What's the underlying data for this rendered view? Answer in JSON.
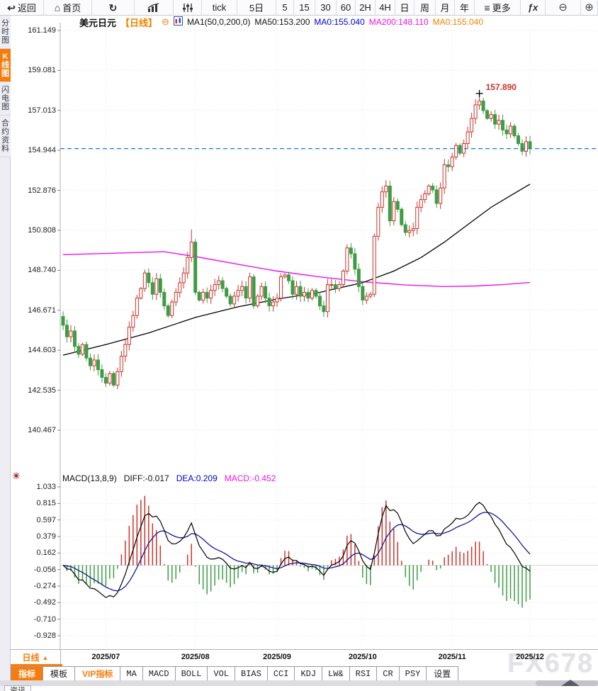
{
  "toolbar": {
    "items": [
      {
        "name": "back-button",
        "icon": "back",
        "label": "返回"
      },
      {
        "name": "home-button",
        "icon": "home",
        "label": "首页"
      },
      {
        "name": "refresh-button",
        "icon": "refresh",
        "label": ""
      },
      {
        "name": "chart-style-button",
        "icon": "bar-chart",
        "label": ""
      },
      {
        "name": "adjust-button",
        "icon": "sliders",
        "label": ""
      },
      {
        "name": "interval-tick-button",
        "label": "tick"
      },
      {
        "name": "interval-5d-button",
        "label": "5日"
      },
      {
        "name": "interval-5m-button",
        "label": "5"
      },
      {
        "name": "interval-15m-button",
        "label": "15"
      },
      {
        "name": "interval-30m-button",
        "label": "30"
      },
      {
        "name": "interval-60m-button",
        "label": "60"
      },
      {
        "name": "interval-2h-button",
        "label": "2H"
      },
      {
        "name": "interval-4h-button",
        "label": "4H"
      },
      {
        "name": "interval-day-button",
        "label": "日"
      },
      {
        "name": "interval-week-button",
        "label": "周"
      },
      {
        "name": "interval-month-button",
        "label": "月"
      },
      {
        "name": "interval-year-button",
        "label": "年"
      },
      {
        "name": "more-button",
        "icon": "menu",
        "label": "更多"
      },
      {
        "name": "fx-button",
        "icon": "fx",
        "label": ""
      },
      {
        "name": "zoom-out-button",
        "icon": "zoom_out",
        "label": ""
      },
      {
        "name": "zoom-in-button",
        "icon": "zoom_in",
        "label": ""
      }
    ]
  },
  "icons": {
    "back": "↩",
    "home": "⌂",
    "refresh": "↻",
    "menu": "≡",
    "fx": "ƒx",
    "zoom_out": "⊖",
    "zoom_in": "⊕",
    "settings_sun": "☀",
    "instrument_collapse": "⊖",
    "dropdown_up": "▲"
  },
  "sidebar": {
    "tabs": [
      {
        "label": "分时图",
        "active": false
      },
      {
        "label": "K线图",
        "active": true
      },
      {
        "label": "闪电图",
        "active": false
      },
      {
        "label": "合约资料",
        "active": false
      }
    ]
  },
  "header": {
    "symbol": "美元日元",
    "period_tag": "【日线】",
    "ma_settings": "MA1(50,0,200,0)",
    "ma50": "MA50:153.200",
    "ma0_blue": "MA0:155.040",
    "ma200": "MA200:148.110",
    "ma0_orange": "MA0:155.040"
  },
  "macd_header": {
    "title": "MACD(13,8,9)",
    "diff": "DIFF:-0.017",
    "dea": "DEA:0.209",
    "macd": "MACD:-0.452"
  },
  "xaxis": {
    "period_button": "日线"
  },
  "bottom": {
    "tabs": [
      {
        "label": "指标",
        "style": "active"
      },
      {
        "label": "模板",
        "style": ""
      },
      {
        "label": "VIP指标",
        "style": "vip"
      },
      {
        "label": "MA",
        "style": "mono"
      },
      {
        "label": "MACD",
        "style": "mono"
      },
      {
        "label": "BOLL",
        "style": "mono"
      },
      {
        "label": "VOL",
        "style": "mono"
      },
      {
        "label": "BIAS",
        "style": "mono"
      },
      {
        "label": "CCI",
        "style": "mono"
      },
      {
        "label": "KDJ",
        "style": "mono"
      },
      {
        "label": "LW&",
        "style": "mono"
      },
      {
        "label": "RSI",
        "style": "mono"
      },
      {
        "label": "CR",
        "style": "mono"
      },
      {
        "label": "PSY",
        "style": "mono"
      },
      {
        "label": "设置",
        "style": ""
      }
    ],
    "news_tab": "资讯"
  },
  "watermark": "FX678",
  "chart_data": {
    "type": "candlestick",
    "title": "美元日元 日线",
    "indicator": "MACD(13,8,9)",
    "legend": [
      "MA50 (black)",
      "MA200 (magenta)",
      "DIFF (black)",
      "DEA (blue)",
      "MACD histogram (red/green)"
    ],
    "y_ticks_main": [
      "161.149",
      "159.081",
      "157.013",
      "154.944",
      "152.876",
      "150.808",
      "148.740",
      "146.671",
      "144.603",
      "142.535",
      "140.467"
    ],
    "y_ticks_macd": [
      "1.033",
      "0.815",
      "0.597",
      "0.379",
      "0.162",
      "-0.056",
      "-0.274",
      "-0.492",
      "-0.710",
      "-0.928"
    ],
    "y_range_main": [
      140.467,
      161.149
    ],
    "y_range_macd": [
      -0.928,
      1.033
    ],
    "month_ticks": [
      {
        "label": "2025/07",
        "index": 11
      },
      {
        "label": "2025/08",
        "index": 34
      },
      {
        "label": "2025/09",
        "index": 55
      },
      {
        "label": "2025/10",
        "index": 77
      },
      {
        "label": "2025/11",
        "index": 100
      },
      {
        "label": "2025/12",
        "index": 120
      }
    ],
    "start_date": "2025-06-16",
    "closes": [
      145.9,
      145.3,
      145.6,
      144.8,
      144.4,
      144.9,
      144.2,
      143.8,
      144.1,
      143.6,
      143.2,
      142.9,
      143.4,
      142.8,
      143.5,
      144.3,
      144.9,
      145.8,
      146.4,
      147.3,
      147.8,
      148.6,
      148.1,
      147.5,
      148.3,
      147.6,
      146.9,
      146.4,
      147.1,
      147.6,
      148.1,
      148.6,
      149.4,
      150.2,
      147.6,
      147.2,
      147.6,
      147.3,
      147.7,
      148.0,
      148.2,
      147.8,
      147.4,
      147.0,
      147.4,
      147.7,
      147.9,
      147.3,
      148.4,
      146.9,
      147.4,
      147.9,
      147.3,
      146.9,
      147.1,
      147.3,
      148.4,
      148.5,
      148.2,
      147.5,
      147.9,
      147.4,
      147.6,
      147.3,
      147.7,
      147.4,
      146.9,
      146.6,
      148.0,
      148.0,
      147.8,
      148.0,
      148.7,
      149.9,
      149.6,
      148.8,
      147.9,
      147.2,
      147.4,
      147.5,
      150.5,
      152.0,
      152.8,
      153.1,
      151.3,
      152.3,
      151.9,
      151.1,
      150.7,
      150.8,
      150.9,
      152.0,
      152.4,
      152.7,
      153.1,
      152.9,
      152.2,
      153.0,
      154.2,
      154.1,
      154.6,
      155.2,
      154.8,
      155.3,
      155.9,
      156.6,
      157.3,
      157.5,
      157.0,
      156.6,
      156.8,
      156.3,
      156.5,
      156.0,
      155.8,
      156.2,
      155.7,
      155.3,
      154.9,
      155.4,
      155.04
    ],
    "wick_overrides": {
      "11": {
        "low": 142.7
      },
      "33": {
        "high": 150.85
      },
      "107": {
        "high": 157.89
      }
    },
    "peak_label": "157.890",
    "peak_index": 107,
    "peak_price": 157.89,
    "last_price": 155.04,
    "ma50_points": [
      [
        0,
        144.35
      ],
      [
        11,
        144.9
      ],
      [
        22,
        145.5
      ],
      [
        34,
        146.3
      ],
      [
        45,
        146.85
      ],
      [
        55,
        147.25
      ],
      [
        66,
        147.6
      ],
      [
        77,
        148.1
      ],
      [
        85,
        148.7
      ],
      [
        92,
        149.4
      ],
      [
        98,
        150.2
      ],
      [
        104,
        151.1
      ],
      [
        110,
        152.0
      ],
      [
        115,
        152.6
      ],
      [
        120,
        153.2
      ]
    ],
    "ma200_points": [
      [
        0,
        149.55
      ],
      [
        12,
        149.62
      ],
      [
        26,
        149.7
      ],
      [
        34,
        149.45
      ],
      [
        45,
        149.05
      ],
      [
        55,
        148.7
      ],
      [
        66,
        148.4
      ],
      [
        77,
        148.15
      ],
      [
        88,
        147.98
      ],
      [
        98,
        147.9
      ],
      [
        106,
        147.93
      ],
      [
        113,
        148.0
      ],
      [
        120,
        148.11
      ]
    ],
    "macd_params": [
      13,
      8,
      9
    ],
    "macd_final": {
      "diff": -0.017,
      "dea": 0.209,
      "macd": -0.452
    },
    "colors": {
      "up": "#c9342c",
      "down": "#3e9c44",
      "ma50": "#000000",
      "ma200": "#f010f0",
      "diff": "#000000",
      "dea": "#16169a",
      "last_price_line": "#1678d3",
      "grid": "#dededf",
      "accent": "#f87c0b",
      "annotation": "#c9342c"
    }
  }
}
